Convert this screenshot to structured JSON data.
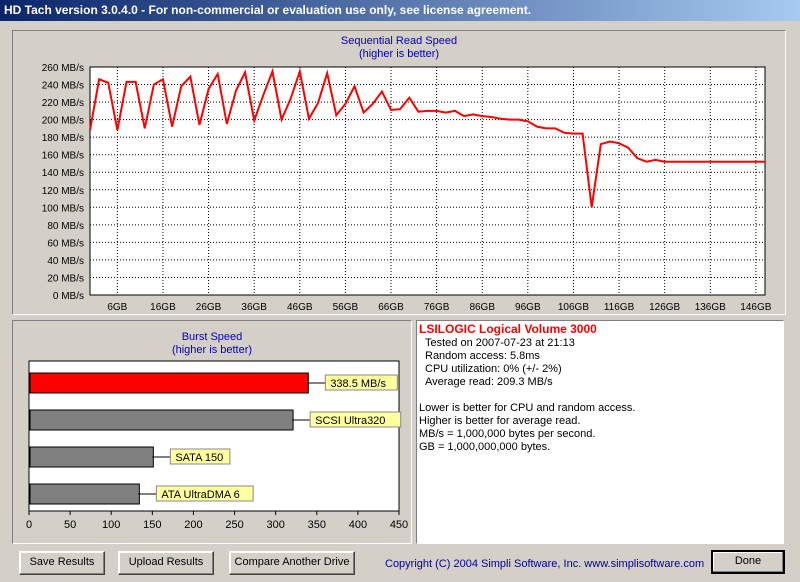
{
  "window": {
    "title": "HD Tach version 3.0.4.0  - For non-commercial or evaluation use only, see license agreement."
  },
  "seq_chart": {
    "title": "Sequential Read Speed",
    "subtitle": "(higher is better)",
    "y_unit_ticks": [
      "0 MB/s",
      "20 MB/s",
      "40 MB/s",
      "60 MB/s",
      "80 MB/s",
      "100 MB/s",
      "120 MB/s",
      "140 MB/s",
      "160 MB/s",
      "180 MB/s",
      "200 MB/s",
      "220 MB/s",
      "240 MB/s",
      "260 MB/s"
    ],
    "x_ticks": [
      "6GB",
      "16GB",
      "26GB",
      "36GB",
      "46GB",
      "56GB",
      "66GB",
      "76GB",
      "86GB",
      "96GB",
      "106GB",
      "116GB",
      "126GB",
      "136GB",
      "146GB"
    ],
    "line_color": "#ff0000"
  },
  "burst_chart": {
    "title": "Burst Speed",
    "subtitle": "(higher is better)",
    "x_ticks": [
      "0",
      "50",
      "100",
      "150",
      "200",
      "250",
      "300",
      "350",
      "400",
      "450"
    ]
  },
  "chart_data": [
    {
      "type": "line",
      "title": "Sequential Read Speed",
      "subtitle": "(higher is better)",
      "xlabel": "",
      "ylabel": "",
      "xlim": [
        0,
        148
      ],
      "ylim": [
        0,
        260
      ],
      "grid": true,
      "series": [
        {
          "x": [
            0,
            2,
            4,
            6,
            8,
            10,
            12,
            14,
            16,
            18,
            20,
            22,
            24,
            26,
            28,
            30,
            32,
            34,
            36,
            38,
            40,
            42,
            44,
            46,
            48,
            50,
            52,
            54,
            56,
            58,
            60,
            62,
            64,
            66,
            68,
            70,
            72,
            74,
            76,
            78,
            80,
            82,
            84,
            86,
            88,
            90,
            92,
            94,
            96,
            98,
            100,
            102,
            104,
            106,
            108,
            110,
            112,
            114,
            116,
            118,
            120,
            122,
            124,
            126,
            128,
            130,
            132,
            134,
            136,
            138,
            140,
            142,
            144,
            146,
            148
          ],
          "y": [
            188,
            246,
            242,
            188,
            243,
            243,
            190,
            240,
            246,
            192,
            238,
            249,
            194,
            235,
            252,
            195,
            233,
            254,
            199,
            228,
            255,
            200,
            224,
            255,
            201,
            219,
            253,
            205,
            218,
            238,
            208,
            218,
            232,
            211,
            212,
            225,
            209,
            210,
            210,
            208,
            210,
            204,
            206,
            204,
            203,
            201,
            200,
            200,
            198,
            192,
            190,
            190,
            185,
            184,
            184,
            100,
            172,
            175,
            173,
            168,
            156,
            152,
            154,
            152,
            152,
            152,
            152,
            152,
            152,
            152,
            152,
            152,
            152,
            152,
            152
          ]
        }
      ]
    },
    {
      "type": "bar",
      "title": "Burst Speed",
      "subtitle": "(higher is better)",
      "categories": [
        "338.5 MB/s",
        "SCSI Ultra320",
        "SATA 150",
        "ATA UltraDMA 6"
      ],
      "values": [
        338.5,
        320,
        150,
        133
      ],
      "xlim": [
        0,
        450
      ],
      "colors": [
        "#ff0000",
        "#808080",
        "#808080",
        "#808080"
      ]
    }
  ],
  "info": {
    "drive_name": "LSILOGIC Logical Volume 3000",
    "tested_on": "Tested on 2007-07-23 at 21:13",
    "random_access": "Random access: 5.8ms",
    "cpu": "CPU utilization: 0% (+/- 2%)",
    "avg_read": "Average read: 209.3 MB/s",
    "note1": "Lower is better for CPU and random access.",
    "note2": "Higher is better for average read.",
    "note3": "MB/s = 1,000,000 bytes per second.",
    "note4": "GB = 1,000,000,000 bytes.",
    "name_color": "#ff0000"
  },
  "buttons": {
    "save": "Save Results",
    "upload": "Upload Results",
    "compare": "Compare Another Drive",
    "done": "Done"
  },
  "copyright": "Copyright (C) 2004 Simpli Software, Inc. www.simplisoftware.com"
}
